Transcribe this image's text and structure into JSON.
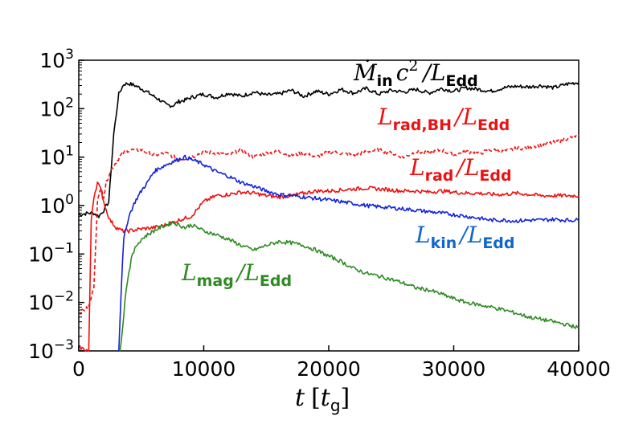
{
  "chart_data": {
    "type": "line",
    "xlabel": {
      "main": "t",
      "bracket_open": "[",
      "var": "t",
      "sub": "g",
      "bracket_close": "]"
    },
    "x_ticks": [
      "0",
      "10000",
      "20000",
      "30000",
      "40000"
    ],
    "x_tick_values": [
      0,
      10000,
      20000,
      30000,
      40000
    ],
    "y_ticks": [
      {
        "base": "10",
        "exp": "−3",
        "value": 0.001
      },
      {
        "base": "10",
        "exp": "−2",
        "value": 0.01
      },
      {
        "base": "10",
        "exp": "−1",
        "value": 0.1
      },
      {
        "base": "10",
        "exp": "0",
        "value": 1
      },
      {
        "base": "10",
        "exp": "1",
        "value": 10
      },
      {
        "base": "10",
        "exp": "2",
        "value": 100
      },
      {
        "base": "10",
        "exp": "3",
        "value": 1000
      }
    ],
    "xlim": [
      0,
      40000
    ],
    "ylim": [
      0.001,
      1000
    ],
    "yscale": "log",
    "grid": false,
    "series": [
      {
        "id": "mdot",
        "color": "#000000",
        "style": "solid",
        "label": {
          "main": "Ṁ",
          "sub": "in",
          "mid": "c",
          "sup": "2",
          "slash": "/L",
          "sub2": "Edd"
        },
        "t": [
          0,
          800,
          1200,
          1600,
          2000,
          2400,
          2800,
          3200,
          3600,
          4000,
          4500,
          5000,
          5500,
          6000,
          6500,
          7000,
          7500,
          8000,
          8500,
          9000,
          10000,
          11000,
          12000,
          13000,
          14000,
          15000,
          16000,
          17000,
          18000,
          19000,
          20000,
          21000,
          22000,
          23000,
          24000,
          25000,
          26000,
          27000,
          28000,
          29000,
          30000,
          31000,
          32000,
          33000,
          34000,
          35000,
          36000,
          37000,
          38000,
          39000,
          40000
        ],
        "values": [
          0.65,
          0.7,
          0.7,
          0.6,
          0.8,
          1.2,
          30,
          200,
          320,
          330,
          300,
          260,
          220,
          180,
          150,
          120,
          115,
          140,
          150,
          170,
          200,
          170,
          210,
          180,
          220,
          190,
          200,
          240,
          180,
          230,
          200,
          250,
          210,
          260,
          200,
          240,
          220,
          250,
          210,
          260,
          230,
          270,
          250,
          230,
          270,
          290,
          280,
          300,
          270,
          320,
          350
        ]
      },
      {
        "id": "lrad_bh",
        "color": "#ee1111",
        "style": "dashed",
        "label": {
          "main": "L",
          "sub": "rad,BH",
          "slash": "/L",
          "sub2": "Edd"
        },
        "t": [
          0,
          800,
          1200,
          1500,
          1800,
          2000,
          2200,
          2500,
          3000,
          3500,
          4000,
          5000,
          6000,
          7000,
          8000,
          9000,
          10000,
          11000,
          12000,
          13000,
          14000,
          15000,
          16000,
          17000,
          18000,
          19000,
          20000,
          21000,
          22000,
          23000,
          24000,
          25000,
          26000,
          27000,
          28000,
          29000,
          30000,
          31000,
          32000,
          33000,
          34000,
          35000,
          36000,
          37000,
          38000,
          39000,
          40000
        ],
        "values": [
          0.006,
          0.008,
          0.02,
          1.2,
          2.5,
          1.5,
          3,
          5,
          8,
          12,
          14,
          14,
          11,
          12,
          9,
          10,
          13,
          12,
          11,
          14,
          10,
          12,
          13,
          11,
          12,
          10,
          13,
          12,
          11,
          13,
          14,
          12,
          10,
          13,
          12,
          14,
          11,
          13,
          12,
          14,
          13,
          15,
          16,
          18,
          20,
          24,
          28
        ]
      },
      {
        "id": "lrad",
        "color": "#ee1111",
        "style": "solid",
        "label": {
          "main": "L",
          "sub": "rad",
          "slash": "/L",
          "sub2": "Edd"
        },
        "t": [
          0,
          800,
          1000,
          1200,
          1500,
          1800,
          2000,
          2200,
          2500,
          3000,
          3500,
          4000,
          5000,
          6000,
          7000,
          8000,
          9000,
          10000,
          11000,
          12000,
          13000,
          14000,
          15000,
          16000,
          17000,
          18000,
          19000,
          20000,
          21000,
          22000,
          23000,
          24000,
          25000,
          26000,
          27000,
          28000,
          29000,
          30000,
          31000,
          32000,
          33000,
          34000,
          35000,
          36000,
          37000,
          38000,
          39000,
          40000
        ],
        "values": [
          0.0012,
          0.001,
          0.5,
          1.5,
          3,
          2,
          1.2,
          0.8,
          0.5,
          0.35,
          0.3,
          0.3,
          0.33,
          0.35,
          0.4,
          0.5,
          0.6,
          1.2,
          1.6,
          1.7,
          1.9,
          1.8,
          1.6,
          1.5,
          1.6,
          1.8,
          2.0,
          2.0,
          2.1,
          2.2,
          2.3,
          2.2,
          2.1,
          2.0,
          2.0,
          1.9,
          2.0,
          1.9,
          1.8,
          1.8,
          1.7,
          1.7,
          1.8,
          1.7,
          1.6,
          1.6,
          1.6,
          1.6
        ]
      },
      {
        "id": "lkin",
        "color": "#1122dd",
        "style": "solid",
        "label": {
          "main": "L",
          "sub": "kin",
          "slash": "/L",
          "sub2": "Edd"
        },
        "t": [
          3200,
          3400,
          3600,
          4000,
          4500,
          5000,
          5500,
          6000,
          6500,
          7000,
          7500,
          8000,
          8500,
          9000,
          9500,
          10000,
          11000,
          12000,
          13000,
          14000,
          15000,
          16000,
          17000,
          18000,
          19000,
          20000,
          21000,
          22000,
          23000,
          24000,
          25000,
          26000,
          27000,
          28000,
          29000,
          30000,
          31000,
          32000,
          33000,
          34000,
          35000,
          36000,
          37000,
          38000,
          39000,
          40000
        ],
        "values": [
          0.001,
          0.02,
          0.2,
          0.6,
          1.2,
          2,
          3,
          5,
          6,
          7,
          8,
          9,
          10,
          9,
          8,
          7,
          5,
          4,
          3,
          2.5,
          2,
          1.7,
          1.6,
          1.5,
          1.4,
          1.3,
          1.2,
          1.1,
          1.0,
          0.95,
          0.9,
          0.85,
          0.8,
          0.75,
          0.7,
          0.65,
          0.6,
          0.55,
          0.5,
          0.5,
          0.48,
          0.5,
          0.5,
          0.52,
          0.5,
          0.5
        ]
      },
      {
        "id": "lmag",
        "color": "#2e8b22",
        "style": "solid",
        "label": {
          "main": "L",
          "sub": "mag",
          "slash": "/L",
          "sub2": "Edd"
        },
        "t": [
          3300,
          3500,
          3800,
          4200,
          4600,
          5000,
          5500,
          6000,
          6500,
          7000,
          7500,
          8000,
          8500,
          9000,
          9500,
          10000,
          11000,
          12000,
          13000,
          14000,
          15000,
          16000,
          17000,
          18000,
          19000,
          20000,
          21000,
          22000,
          23000,
          24000,
          25000,
          26000,
          27000,
          28000,
          29000,
          30000,
          31000,
          32000,
          33000,
          34000,
          35000,
          36000,
          37000,
          38000,
          39000,
          40000
        ],
        "values": [
          0.001,
          0.003,
          0.02,
          0.08,
          0.15,
          0.2,
          0.25,
          0.3,
          0.35,
          0.4,
          0.45,
          0.4,
          0.35,
          0.4,
          0.35,
          0.3,
          0.25,
          0.2,
          0.15,
          0.12,
          0.15,
          0.18,
          0.17,
          0.15,
          0.12,
          0.09,
          0.07,
          0.05,
          0.04,
          0.035,
          0.03,
          0.025,
          0.02,
          0.018,
          0.015,
          0.012,
          0.01,
          0.009,
          0.008,
          0.007,
          0.006,
          0.005,
          0.0045,
          0.004,
          0.0035,
          0.003
        ]
      }
    ]
  }
}
